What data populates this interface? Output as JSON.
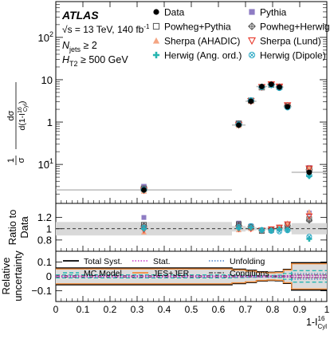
{
  "chart_data": {
    "type": "scatter",
    "experiment": "ATLAS",
    "labels": {
      "energy": "√s = 13 TeV, 140 fb",
      "energy_sup": "-1",
      "njets_pre": "N",
      "njets_sub": "jets",
      "njets_post": " ≥ 2",
      "ht_pre": "H",
      "ht_sub": "T2",
      "ht_post": " ≥ 500 GeV"
    },
    "xlabel": {
      "base": "1-I",
      "sup": "16",
      "sub": "Cyl"
    },
    "xlim": [
      0,
      1
    ],
    "x_ticks": [
      "0",
      "0.1",
      "0.2",
      "0.3",
      "0.4",
      "0.5",
      "0.6",
      "0.7",
      "0.8",
      "0.9",
      "1"
    ],
    "top_panel": {
      "ylabel": "1/σ dσ/d(1-I^16_Cyl)",
      "ylabel_parts": {
        "num_left": "1",
        "den_left": "σ",
        "num_right": "dσ",
        "den_right_base": "d(1-I",
        "den_right_sup": "16",
        "den_right_sub": "Cyl",
        "den_right_end": ")"
      },
      "yscale": "log",
      "ylim": [
        0.012,
        700
      ],
      "y_ticks": [
        {
          "value": 0.1,
          "base": "10",
          "exp": "−1"
        },
        {
          "value": 1,
          "base": "1",
          "exp": ""
        },
        {
          "value": 10,
          "base": "10",
          "exp": ""
        },
        {
          "value": 100,
          "base": "10",
          "exp": "2"
        }
      ],
      "data_bins": [
        {
          "lo": 0.0,
          "hi": 0.65,
          "value": 0.025
        },
        {
          "lo": 0.65,
          "hi": 0.7,
          "value": 0.85
        },
        {
          "lo": 0.7,
          "hi": 0.74,
          "value": 3.1
        },
        {
          "lo": 0.74,
          "hi": 0.78,
          "value": 6.9
        },
        {
          "lo": 0.78,
          "hi": 0.81,
          "value": 7.8
        },
        {
          "lo": 0.81,
          "hi": 0.84,
          "value": 6.7
        },
        {
          "lo": 0.84,
          "hi": 0.87,
          "value": 2.3
        },
        {
          "lo": 0.87,
          "hi": 1.0,
          "value": 0.065
        }
      ]
    },
    "series": [
      {
        "name": "Data",
        "marker": "filled-circle",
        "color": "#000000"
      },
      {
        "name": "Pythia",
        "marker": "filled-square",
        "color": "#8e7cc3",
        "ratio": [
          1.2,
          1.1,
          1.05,
          0.97,
          0.97,
          1.0,
          1.08,
          1.28
        ]
      },
      {
        "name": "Powheg+Pythia",
        "marker": "open-square",
        "color": "#555555",
        "ratio": [
          1.07,
          1.08,
          1.03,
          0.96,
          0.98,
          1.02,
          1.06,
          1.17
        ]
      },
      {
        "name": "Powheg+Herwig",
        "marker": "diamond-cross",
        "color": "#555555",
        "ratio": [
          1.05,
          1.06,
          1.03,
          0.97,
          0.98,
          1.01,
          1.06,
          1.15
        ]
      },
      {
        "name": "Sherpa (AHADIC)",
        "marker": "filled-triangle-up",
        "color": "#f4a582",
        "ratio": [
          0.94,
          0.98,
          1.0,
          0.98,
          0.99,
          1.03,
          1.1,
          1.3
        ]
      },
      {
        "name": "Sherpa (Lund)",
        "marker": "open-triangle-down",
        "color": "#e8392b",
        "ratio": [
          0.98,
          1.0,
          1.0,
          0.97,
          0.99,
          1.02,
          1.08,
          1.22
        ]
      },
      {
        "name": "Herwig (Ang. ord.)",
        "marker": "filled-cross",
        "color": "#26b5b0",
        "ratio": [
          1.0,
          1.01,
          1.02,
          0.97,
          0.97,
          0.99,
          0.98,
          0.82
        ]
      },
      {
        "name": "Herwig (Dipole)",
        "marker": "open-circle-x",
        "color": "#2aa8c4",
        "ratio": [
          1.02,
          1.03,
          1.05,
          0.98,
          0.96,
          0.95,
          0.97,
          0.86
        ]
      }
    ],
    "ratio_panel": {
      "ylabel": [
        "Ratio to",
        "Data"
      ],
      "ylim": [
        0.6,
        1.45
      ],
      "y_ticks": [
        "0.8",
        "1",
        "1.2"
      ],
      "band": [
        0.12,
        0.05,
        0.03,
        0.02,
        0.02,
        0.03,
        0.05,
        0.1
      ]
    },
    "uncertainty_panel": {
      "ylabel": [
        "Relative",
        "uncertainty"
      ],
      "ylim": [
        -0.175,
        0.175
      ],
      "y_ticks": [
        "0.1",
        "0",
        "−0.1"
      ],
      "legend": [
        {
          "name": "Total Syst.",
          "color": "#000000",
          "style": "solid"
        },
        {
          "name": "Stat.",
          "color": "#c837c8",
          "style": "dotted"
        },
        {
          "name": "Unfolding",
          "color": "#4a80c8",
          "style": "dotted"
        },
        {
          "name": "MC Model",
          "color": "#26b5b0",
          "style": "dashed"
        },
        {
          "name": "JES+JER",
          "color": "#f08c3c",
          "style": "solid"
        },
        {
          "name": "Conditions",
          "color": "#555555",
          "style": "dashdot"
        }
      ],
      "total_syst": [
        0.058,
        0.05,
        0.042,
        0.032,
        0.028,
        0.03,
        0.048,
        0.095
      ],
      "jes_jer": [
        0.052,
        0.045,
        0.038,
        0.028,
        0.025,
        0.027,
        0.044,
        0.088
      ],
      "mc_model": [
        0.01,
        0.008,
        0.006,
        0.005,
        0.006,
        0.008,
        0.02,
        -0.04
      ],
      "unfolding": [
        0.004,
        0.004,
        0.003,
        0.003,
        0.003,
        0.004,
        0.005,
        -0.02
      ],
      "stat": [
        0.003,
        0.003,
        0.003,
        0.003,
        0.003,
        0.003,
        0.004,
        0.006
      ],
      "conditions": [
        0.005,
        0.004,
        0.004,
        0.003,
        0.003,
        0.004,
        0.005,
        0.01
      ]
    }
  }
}
